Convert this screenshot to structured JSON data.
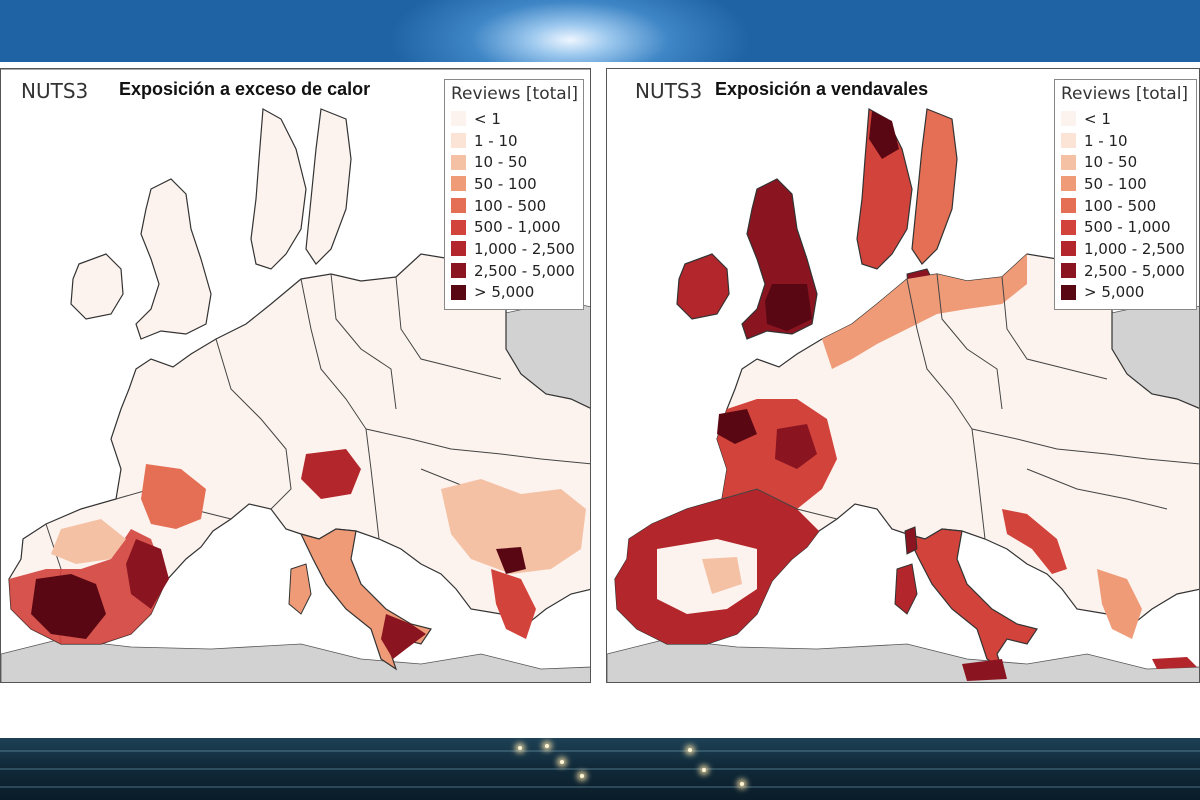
{
  "legend_scale": {
    "title": "Reviews [total]",
    "classes": [
      {
        "label": "< 1",
        "color": "#fcf3ee"
      },
      {
        "label": "1 - 10",
        "color": "#fbe3d6"
      },
      {
        "label": "10 - 50",
        "color": "#f5c1a5"
      },
      {
        "label": "50 - 100",
        "color": "#ef9b78"
      },
      {
        "label": "100 - 500",
        "color": "#e46f54"
      },
      {
        "label": "500 - 1,000",
        "color": "#d2433b"
      },
      {
        "label": "1,000 - 2,500",
        "color": "#b3262b"
      },
      {
        "label": "2,500 - 5,000",
        "color": "#8a1420"
      },
      {
        "label": "> 5,000",
        "color": "#5a0714"
      }
    ]
  },
  "colors": {
    "non_eu_country": "#d2d2d2",
    "sea": "#ffffff",
    "border": "#333333"
  },
  "maps": [
    {
      "region_label": "NUTS3",
      "title": "Exposición a exceso de calor",
      "hazard": "heat"
    },
    {
      "region_label": "NUTS3",
      "title": "Exposición a vendavales",
      "hazard": "windstorm"
    }
  ]
}
